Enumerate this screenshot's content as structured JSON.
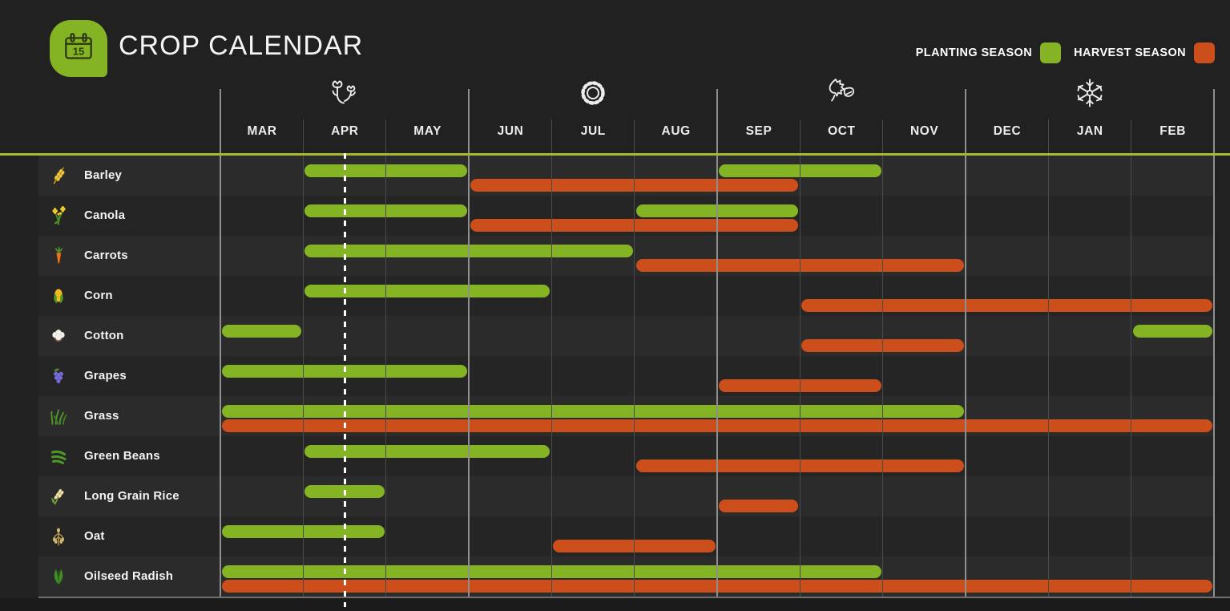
{
  "header": {
    "title": "CROP CALENDAR",
    "logo_day": "15",
    "logo_icon": "calendar-icon",
    "logo_color": "#84b324"
  },
  "legend": [
    {
      "label": "PLANTING SEASON",
      "color": "#84b324",
      "key": "planting"
    },
    {
      "label": "HARVEST SEASON",
      "color": "#cc4e1b",
      "key": "harvest"
    }
  ],
  "months": [
    "MAR",
    "APR",
    "MAY",
    "JUN",
    "JUL",
    "AUG",
    "SEP",
    "OCT",
    "NOV",
    "DEC",
    "JAN",
    "FEB"
  ],
  "season_icons": [
    {
      "name": "spring-flower-icon",
      "month": "APR",
      "month_index": 1
    },
    {
      "name": "summer-sun-icon",
      "month": "JUL",
      "month_index": 4
    },
    {
      "name": "autumn-leaves-icon",
      "month": "OCT",
      "month_index": 7
    },
    {
      "name": "winter-snowflake-icon",
      "month": "JAN",
      "month_index": 10
    }
  ],
  "today_marker": {
    "month": "APR",
    "position_months": 1.5,
    "style": "white-dashed-line"
  },
  "colors": {
    "background": "#212121",
    "row_light": "#2b2b2b",
    "row_dark": "#252525",
    "planting": "#84b324",
    "harvest": "#cc4e1b",
    "axis_line": "#a9ba2e",
    "grid_minor": "#4b4b4b",
    "grid_major": "#8f8f8f",
    "text": "#f3f3f3"
  },
  "chart_data": {
    "type": "gantt",
    "title": "CROP CALENDAR",
    "x_axis": {
      "unit": "month",
      "categories": [
        "MAR",
        "APR",
        "MAY",
        "JUN",
        "JUL",
        "AUG",
        "SEP",
        "OCT",
        "NOV",
        "DEC",
        "JAN",
        "FEB"
      ],
      "quarter_gridlines_at": [
        "MAR",
        "JUN",
        "SEP",
        "DEC"
      ]
    },
    "legend_entries": [
      "PLANTING SEASON",
      "HARVEST SEASON"
    ],
    "series_colors": {
      "planting": "#84b324",
      "harvest": "#cc4e1b"
    },
    "crops": [
      {
        "name": "Barley",
        "icon": "barley-icon",
        "planting": [
          {
            "from": "APR",
            "to": "MAY",
            "span": [
              1,
              3
            ]
          },
          {
            "from": "SEP",
            "to": "OCT",
            "span": [
              6,
              8
            ]
          }
        ],
        "harvest": [
          {
            "from": "JUN",
            "to": "SEP",
            "span": [
              3,
              7
            ]
          }
        ]
      },
      {
        "name": "Canola",
        "icon": "canola-icon",
        "planting": [
          {
            "from": "APR",
            "to": "MAY",
            "span": [
              1,
              3
            ]
          },
          {
            "from": "AUG",
            "to": "SEP",
            "span": [
              5,
              7
            ]
          }
        ],
        "harvest": [
          {
            "from": "JUN",
            "to": "SEP",
            "span": [
              3,
              7
            ]
          }
        ]
      },
      {
        "name": "Carrots",
        "icon": "carrots-icon",
        "planting": [
          {
            "from": "APR",
            "to": "JUL",
            "span": [
              1,
              5
            ]
          }
        ],
        "harvest": [
          {
            "from": "AUG",
            "to": "NOV",
            "span": [
              5,
              9
            ]
          }
        ]
      },
      {
        "name": "Corn",
        "icon": "corn-icon",
        "planting": [
          {
            "from": "APR",
            "to": "JUN",
            "span": [
              1,
              4
            ]
          }
        ],
        "harvest": [
          {
            "from": "OCT",
            "to": "FEB",
            "span": [
              7,
              12
            ]
          }
        ]
      },
      {
        "name": "Cotton",
        "icon": "cotton-icon",
        "planting": [
          {
            "from": "MAR",
            "to": "MAR",
            "span": [
              0,
              1
            ]
          },
          {
            "from": "FEB",
            "to": "FEB",
            "span": [
              11,
              12
            ]
          }
        ],
        "harvest": [
          {
            "from": "OCT",
            "to": "NOV",
            "span": [
              7,
              9
            ]
          }
        ]
      },
      {
        "name": "Grapes",
        "icon": "grapes-icon",
        "planting": [
          {
            "from": "MAR",
            "to": "MAY",
            "span": [
              0,
              3
            ]
          }
        ],
        "harvest": [
          {
            "from": "SEP",
            "to": "OCT",
            "span": [
              6,
              8
            ]
          }
        ]
      },
      {
        "name": "Grass",
        "icon": "grass-icon",
        "planting": [
          {
            "from": "MAR",
            "to": "NOV",
            "span": [
              0,
              9
            ]
          }
        ],
        "harvest": [
          {
            "from": "MAR",
            "to": "FEB",
            "span": [
              0,
              12
            ]
          }
        ]
      },
      {
        "name": "Green Beans",
        "icon": "green-beans-icon",
        "planting": [
          {
            "from": "APR",
            "to": "JUN",
            "span": [
              1,
              4
            ]
          }
        ],
        "harvest": [
          {
            "from": "AUG",
            "to": "NOV",
            "span": [
              5,
              9
            ]
          }
        ]
      },
      {
        "name": "Long Grain Rice",
        "icon": "long-grain-rice-icon",
        "planting": [
          {
            "from": "APR",
            "to": "APR",
            "span": [
              1,
              2
            ]
          }
        ],
        "harvest": [
          {
            "from": "SEP",
            "to": "SEP",
            "span": [
              6,
              7
            ]
          }
        ]
      },
      {
        "name": "Oat",
        "icon": "oat-icon",
        "planting": [
          {
            "from": "MAR",
            "to": "APR",
            "span": [
              0,
              2
            ]
          }
        ],
        "harvest": [
          {
            "from": "JUL",
            "to": "AUG",
            "span": [
              4,
              6
            ]
          }
        ]
      },
      {
        "name": "Oilseed Radish",
        "icon": "oilseed-radish-icon",
        "planting": [
          {
            "from": "MAR",
            "to": "OCT",
            "span": [
              0,
              8
            ]
          }
        ],
        "harvest": [
          {
            "from": "MAR",
            "to": "FEB",
            "span": [
              0,
              12
            ]
          }
        ]
      }
    ]
  }
}
